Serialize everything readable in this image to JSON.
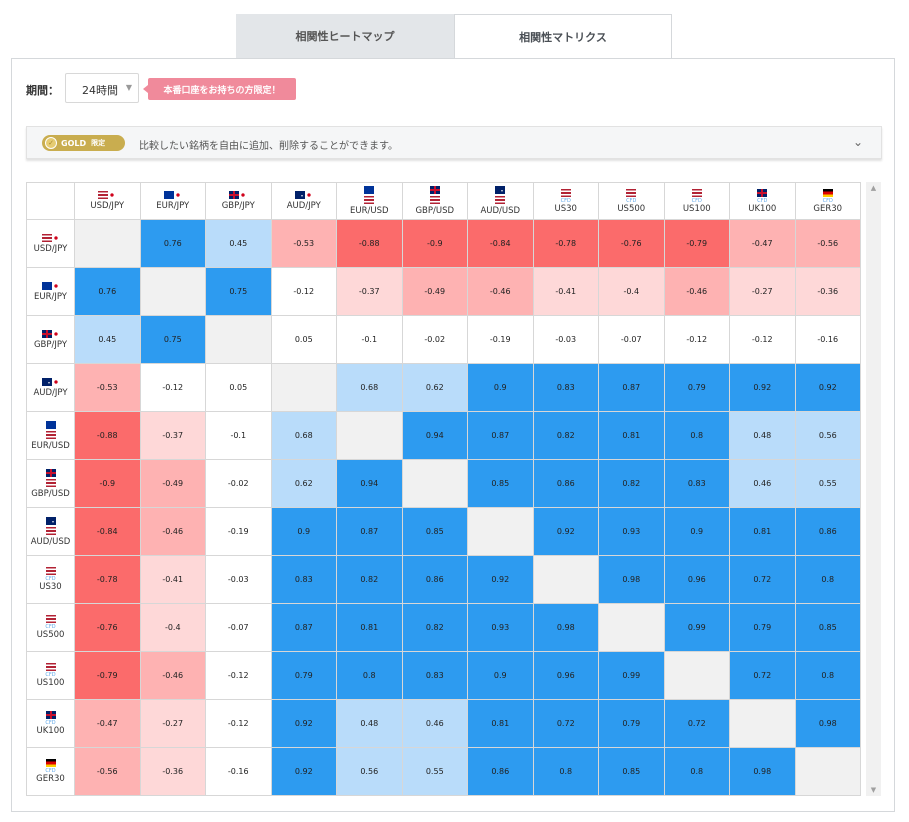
{
  "tabs": [
    {
      "label": "相関性ヒートマップ",
      "active": false
    },
    {
      "label": "相関性マトリクス",
      "active": true
    }
  ],
  "period": {
    "label": "期間：",
    "value": "24時間"
  },
  "promo_label": "本番口座をお持ちの方限定！",
  "gold": {
    "badge": "GOLD",
    "badge_suffix": "限定",
    "message": "比較したい銘柄を自由に追加、削除することができます。"
  },
  "colors": {
    "strong_pos": "#2d9bf0",
    "light_pos": "#b9dcfa",
    "strong_neg": "#fb6b6b",
    "mid_neg": "#feb2b2",
    "light_neg": "#fed8d8",
    "neutral": "#ffffff",
    "diag": "#f1f1f1"
  },
  "instruments": [
    {
      "name": "USD/JPY",
      "flags": [
        "us",
        "jp"
      ],
      "cfd": ""
    },
    {
      "name": "EUR/JPY",
      "flags": [
        "eu",
        "jp"
      ],
      "cfd": ""
    },
    {
      "name": "GBP/JPY",
      "flags": [
        "gb",
        "jp"
      ],
      "cfd": ""
    },
    {
      "name": "AUD/JPY",
      "flags": [
        "au",
        "jp"
      ],
      "cfd": ""
    },
    {
      "name": "EUR/USD",
      "flags": [
        "eu",
        "us"
      ],
      "cfd": ""
    },
    {
      "name": "GBP/USD",
      "flags": [
        "gb",
        "us"
      ],
      "cfd": ""
    },
    {
      "name": "AUD/USD",
      "flags": [
        "au",
        "us"
      ],
      "cfd": ""
    },
    {
      "name": "US30",
      "flags": [
        "us"
      ],
      "cfd": "CFD"
    },
    {
      "name": "US500",
      "flags": [
        "us"
      ],
      "cfd": "CFD"
    },
    {
      "name": "US100",
      "flags": [
        "us"
      ],
      "cfd": "CFD"
    },
    {
      "name": "UK100",
      "flags": [
        "gb"
      ],
      "cfd": "CFD"
    },
    {
      "name": "GER30",
      "flags": [
        "de"
      ],
      "cfd": "CFD"
    }
  ],
  "matrix": [
    [
      "",
      "0.76",
      "0.45",
      "-0.53",
      "-0.88",
      "-0.9",
      "-0.84",
      "-0.78",
      "-0.76",
      "-0.79",
      "-0.47",
      "-0.56"
    ],
    [
      "0.76",
      "",
      "0.75",
      "-0.12",
      "-0.37",
      "-0.49",
      "-0.46",
      "-0.41",
      "-0.4",
      "-0.46",
      "-0.27",
      "-0.36"
    ],
    [
      "0.45",
      "0.75",
      "",
      "0.05",
      "-0.1",
      "-0.02",
      "-0.19",
      "-0.03",
      "-0.07",
      "-0.12",
      "-0.12",
      "-0.16"
    ],
    [
      "-0.53",
      "-0.12",
      "0.05",
      "",
      "0.68",
      "0.62",
      "0.9",
      "0.83",
      "0.87",
      "0.79",
      "0.92",
      "0.92"
    ],
    [
      "-0.88",
      "-0.37",
      "-0.1",
      "0.68",
      "",
      "0.94",
      "0.87",
      "0.82",
      "0.81",
      "0.8",
      "0.48",
      "0.56"
    ],
    [
      "-0.9",
      "-0.49",
      "-0.02",
      "0.62",
      "0.94",
      "",
      "0.85",
      "0.86",
      "0.82",
      "0.83",
      "0.46",
      "0.55"
    ],
    [
      "-0.84",
      "-0.46",
      "-0.19",
      "0.9",
      "0.87",
      "0.85",
      "",
      "0.92",
      "0.93",
      "0.9",
      "0.81",
      "0.86"
    ],
    [
      "-0.78",
      "-0.41",
      "-0.03",
      "0.83",
      "0.82",
      "0.86",
      "0.92",
      "",
      "0.98",
      "0.96",
      "0.72",
      "0.8"
    ],
    [
      "-0.76",
      "-0.4",
      "-0.07",
      "0.87",
      "0.81",
      "0.82",
      "0.93",
      "0.98",
      "",
      "0.99",
      "0.79",
      "0.85"
    ],
    [
      "-0.79",
      "-0.46",
      "-0.12",
      "0.79",
      "0.8",
      "0.83",
      "0.9",
      "0.96",
      "0.99",
      "",
      "0.72",
      "0.8"
    ],
    [
      "-0.47",
      "-0.27",
      "-0.12",
      "0.92",
      "0.48",
      "0.46",
      "0.81",
      "0.72",
      "0.79",
      "0.72",
      "",
      "0.98"
    ],
    [
      "-0.56",
      "-0.36",
      "-0.16",
      "0.92",
      "0.56",
      "0.55",
      "0.86",
      "0.8",
      "0.85",
      "0.8",
      "0.98",
      ""
    ]
  ]
}
